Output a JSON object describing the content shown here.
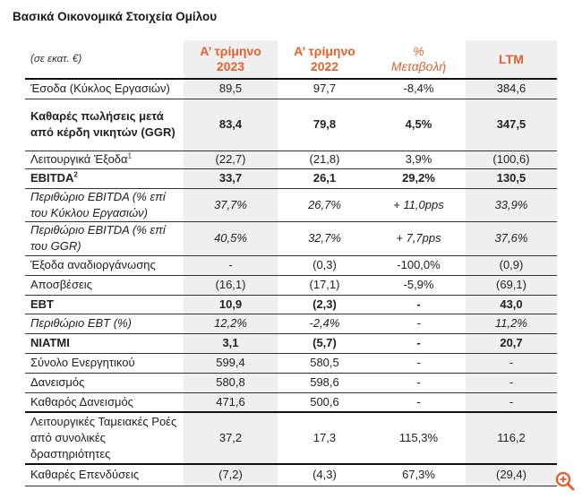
{
  "title": "Βασικά Οικονομικά Στοιχεία Ομίλου",
  "table": {
    "unit": "(σε εκατ. €)",
    "headers": [
      "Α’ τρίμηνο 2023",
      "Α’ τρίμηνο 2022",
      "% Μεταβολή",
      "LTM"
    ],
    "header_lines": [
      [
        "Α’ τρίμηνο",
        "2023"
      ],
      [
        "Α’ τρίμηνο",
        "2022"
      ],
      [
        "%",
        "Μεταβολή"
      ],
      [
        "LTM"
      ]
    ],
    "rows": [
      {
        "label": "Έσοδα (Κύκλος Εργασιών)",
        "values": [
          "89,5",
          "97,7",
          "-8,4%",
          "384,6"
        ]
      },
      {
        "label": "Καθαρές πωλήσεις μετά από κέρδη νικητών (GGR)",
        "values": [
          "83,4",
          "79,8",
          "4,5%",
          "347,5"
        ]
      },
      {
        "label": "Λειτουργικά Έξοδα",
        "sup": "1",
        "values": [
          "(22,7)",
          "(21,8)",
          "3,9%",
          "(100,6)"
        ]
      },
      {
        "label": "EBITDA",
        "sup": "2",
        "values": [
          "33,7",
          "26,1",
          "29,2%",
          "130,5"
        ]
      },
      {
        "label": "Περιθώριο EBITDA (% επί του Κύκλου Εργασιών)",
        "values": [
          "37,7%",
          "26,7%",
          "+ 11,0pps",
          "33,9%"
        ]
      },
      {
        "label": "Περιθώριο EBITDA (% επί του GGR)",
        "values": [
          "40,5%",
          "32,7%",
          "+ 7,7pps",
          "37,6%"
        ]
      },
      {
        "label": "Έξοδα αναδιοργάνωσης",
        "values": [
          "-",
          "(0,3)",
          "-100,0%",
          "(0,9)"
        ]
      },
      {
        "label": "Αποσβέσεις",
        "values": [
          "(16,1)",
          "(17,1)",
          "-5,9%",
          "(69,1)"
        ]
      },
      {
        "label": "EBT",
        "values": [
          "10,9",
          "(2,3)",
          "-",
          "43,0"
        ]
      },
      {
        "label": "Περιθώριο EBT (%)",
        "values": [
          "12,2%",
          "-2,4%",
          "-",
          "11,2%"
        ]
      },
      {
        "label": "NIATMI",
        "values": [
          "3,1",
          "(5,7)",
          "-",
          "20,7"
        ]
      },
      {
        "label": "Σύνολο Ενεργητικού",
        "values": [
          "599,4",
          "580,5",
          "-",
          "-"
        ]
      },
      {
        "label": "Δανεισμός",
        "values": [
          "580,8",
          "598,6",
          "-",
          "-"
        ]
      },
      {
        "label": "Καθαρός Δανεισμός",
        "values": [
          "471,6",
          "500,6",
          "-",
          "-"
        ]
      },
      {
        "label": "Λειτουργικές Ταμειακές Ροές από συνολικές δραστηριότητες",
        "values": [
          "37,2",
          "17,3",
          "115,3%",
          "116,2"
        ]
      },
      {
        "label": "Καθαρές Επενδύσεις",
        "values": [
          "(7,2)",
          "(4,3)",
          "67,3%",
          "(29,4)"
        ]
      }
    ]
  },
  "colors": {
    "accent": "#e8602c",
    "shade": "#efefef"
  },
  "icons": {
    "zoom": "zoom-in-icon"
  }
}
